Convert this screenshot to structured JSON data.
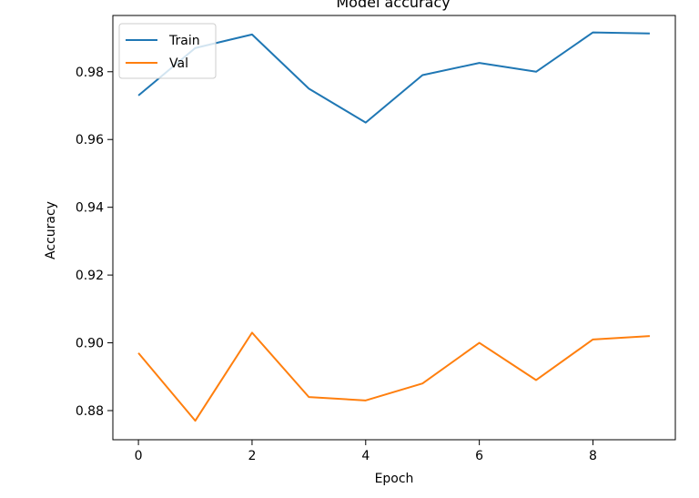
{
  "chart_data": {
    "type": "line",
    "title": "Model accuracy",
    "xlabel": "Epoch",
    "ylabel": "Accuracy",
    "x": [
      0,
      1,
      2,
      3,
      4,
      5,
      6,
      7,
      8,
      9
    ],
    "xlim": [
      -0.45,
      9.45
    ],
    "ylim": [
      0.8714,
      0.9966
    ],
    "xticks": [
      0,
      2,
      4,
      6,
      8
    ],
    "yticks": [
      0.88,
      0.9,
      0.92,
      0.94,
      0.96,
      0.98
    ],
    "ytick_labels": [
      "0.88",
      "0.90",
      "0.92",
      "0.94",
      "0.96",
      "0.98"
    ],
    "grid": false,
    "legend_position": "upper-left",
    "series": [
      {
        "name": "Train",
        "color": "#1f77b4",
        "values": [
          0.973,
          0.987,
          0.991,
          0.975,
          0.965,
          0.979,
          0.9826,
          0.98,
          0.9916,
          0.9913
        ]
      },
      {
        "name": "Val",
        "color": "#ff7f0e",
        "values": [
          0.897,
          0.877,
          0.903,
          0.884,
          0.883,
          0.888,
          0.9,
          0.889,
          0.901,
          0.902
        ]
      }
    ]
  }
}
